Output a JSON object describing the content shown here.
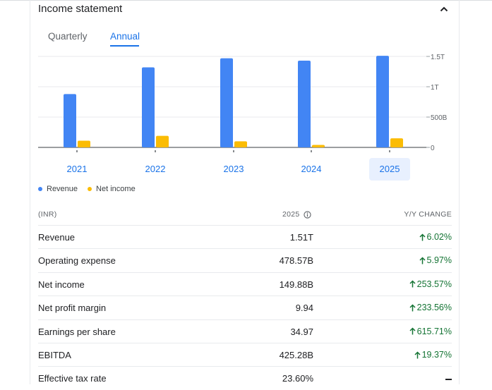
{
  "card": {
    "title": "Income statement",
    "collapse_icon": "chevron-up-icon"
  },
  "tabs": [
    {
      "label": "Quarterly",
      "selected": false
    },
    {
      "label": "Annual",
      "selected": true
    }
  ],
  "chart_data": {
    "type": "bar",
    "categories": [
      "2021",
      "2022",
      "2023",
      "2024",
      "2025"
    ],
    "series": [
      {
        "name": "Revenue",
        "color": "#4285f4",
        "values": [
          0.88,
          1.32,
          1.47,
          1.43,
          1.51
        ]
      },
      {
        "name": "Net income",
        "color": "#fbbc04",
        "values": [
          0.11,
          0.19,
          0.1,
          0.04,
          0.15
        ]
      }
    ],
    "ylim": [
      0,
      1.5
    ],
    "yticks": [
      {
        "value": 0,
        "label": "0"
      },
      {
        "value": 0.5,
        "label": "500B"
      },
      {
        "value": 1.0,
        "label": "1T"
      },
      {
        "value": 1.5,
        "label": "1.5T"
      }
    ],
    "selected_category": "2025",
    "grid": true,
    "legend": "bottom-left"
  },
  "legend": [
    {
      "label": "Revenue",
      "color": "#4285f4"
    },
    {
      "label": "Net income",
      "color": "#fbbc04"
    }
  ],
  "table": {
    "currency_header": "(INR)",
    "year_header": "2025",
    "change_header": "Y/Y CHANGE",
    "rows": [
      {
        "label": "Revenue",
        "value": "1.51T",
        "change": "6.02%",
        "direction": "up"
      },
      {
        "label": "Operating expense",
        "value": "478.57B",
        "change": "5.97%",
        "direction": "up"
      },
      {
        "label": "Net income",
        "value": "149.88B",
        "change": "253.57%",
        "direction": "up"
      },
      {
        "label": "Net profit margin",
        "value": "9.94",
        "change": "233.56%",
        "direction": "up"
      },
      {
        "label": "Earnings per share",
        "value": "34.97",
        "change": "615.71%",
        "direction": "up"
      },
      {
        "label": "EBITDA",
        "value": "425.28B",
        "change": "19.37%",
        "direction": "up"
      },
      {
        "label": "Effective tax rate",
        "value": "23.60%",
        "change": "",
        "direction": "none"
      }
    ]
  }
}
